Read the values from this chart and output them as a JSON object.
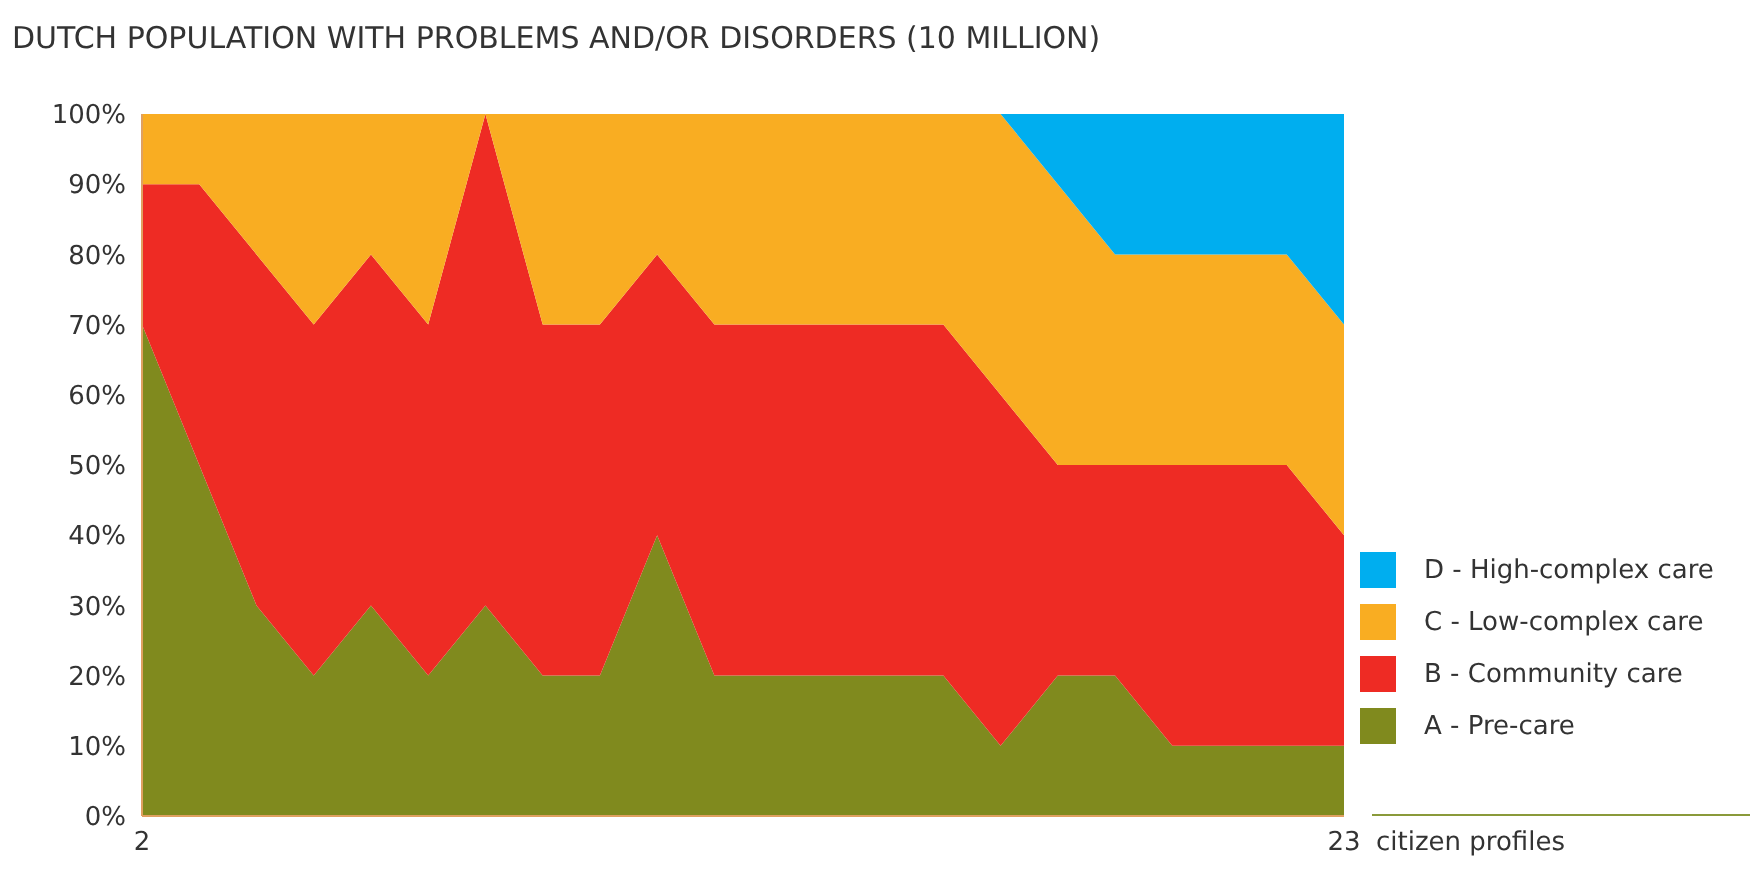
{
  "chart_data": {
    "type": "area",
    "stacked": true,
    "title": "DUTCH POPULATION WITH PROBLEMS AND/OR DISORDERS (10 MILLION)",
    "xlabel": "citizen profiles",
    "x": [
      2,
      3,
      4,
      5,
      6,
      7,
      8,
      9,
      10,
      11,
      12,
      13,
      14,
      15,
      16,
      17,
      18,
      19,
      20,
      21,
      22,
      23
    ],
    "xlim": [
      2,
      23
    ],
    "xticks": [
      2,
      23
    ],
    "ylim": [
      0,
      100
    ],
    "yticks": [
      {
        "value": 0,
        "label": "0%"
      },
      {
        "value": 10,
        "label": "10%"
      },
      {
        "value": 20,
        "label": "20%"
      },
      {
        "value": 30,
        "label": "30%"
      },
      {
        "value": 40,
        "label": "40%"
      },
      {
        "value": 50,
        "label": "50%"
      },
      {
        "value": 60,
        "label": "60%"
      },
      {
        "value": 70,
        "label": "70%"
      },
      {
        "value": 80,
        "label": "80%"
      },
      {
        "value": 90,
        "label": "90%"
      },
      {
        "value": 100,
        "label": "100%"
      }
    ],
    "grid": false,
    "legend": "right",
    "series": [
      {
        "name": "A - Pre-care",
        "color": "#808a1e",
        "values": [
          70,
          50,
          30,
          20,
          30,
          20,
          30,
          20,
          20,
          40,
          20,
          20,
          20,
          20,
          20,
          10,
          20,
          20,
          10,
          10,
          10,
          10
        ]
      },
      {
        "name": "B - Community care",
        "color": "#ee2b24",
        "values": [
          20,
          40,
          50,
          50,
          50,
          50,
          70,
          50,
          50,
          40,
          50,
          50,
          50,
          50,
          50,
          50,
          30,
          30,
          40,
          40,
          40,
          30
        ]
      },
      {
        "name": "C - Low-complex care",
        "color": "#f9ad22",
        "values": [
          10,
          10,
          20,
          30,
          20,
          30,
          0,
          30,
          30,
          20,
          30,
          30,
          30,
          30,
          30,
          40,
          40,
          30,
          30,
          30,
          30,
          30
        ]
      },
      {
        "name": "D - High-complex care",
        "color": "#00aeef",
        "values": [
          0,
          0,
          0,
          0,
          0,
          0,
          0,
          0,
          0,
          0,
          0,
          0,
          0,
          0,
          0,
          0,
          10,
          20,
          20,
          20,
          20,
          30
        ]
      }
    ]
  }
}
